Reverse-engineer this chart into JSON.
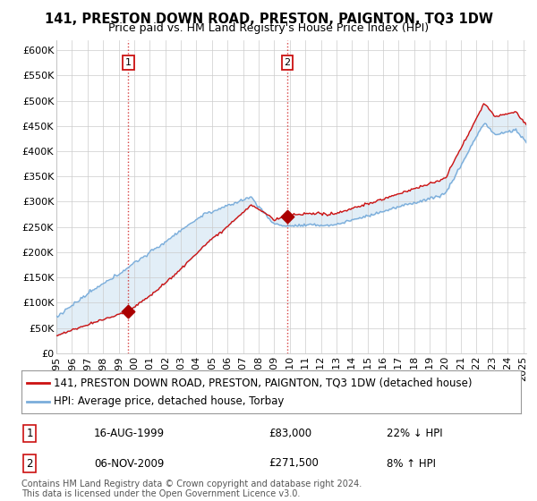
{
  "title": "141, PRESTON DOWN ROAD, PRESTON, PAIGNTON, TQ3 1DW",
  "subtitle": "Price paid vs. HM Land Registry's House Price Index (HPI)",
  "ylabel_ticks": [
    "£0",
    "£50K",
    "£100K",
    "£150K",
    "£200K",
    "£250K",
    "£300K",
    "£350K",
    "£400K",
    "£450K",
    "£500K",
    "£550K",
    "£600K"
  ],
  "ytick_values": [
    0,
    50000,
    100000,
    150000,
    200000,
    250000,
    300000,
    350000,
    400000,
    450000,
    500000,
    550000,
    600000
  ],
  "sale1": {
    "date_num": 1999.62,
    "price": 83000,
    "label": "1",
    "date_str": "16-AUG-1999",
    "pct": "22% ↓ HPI"
  },
  "sale2": {
    "date_num": 2009.85,
    "price": 271500,
    "label": "2",
    "date_str": "06-NOV-2009",
    "pct": "8% ↑ HPI"
  },
  "hpi_line_color": "#7aaddb",
  "price_line_color": "#cc1111",
  "fill_color": "#d6e8f5",
  "sale_dot_color": "#aa0000",
  "vline_color": "#cc1111",
  "background_color": "#ffffff",
  "grid_color": "#cccccc",
  "legend_label_price": "141, PRESTON DOWN ROAD, PRESTON, PAIGNTON, TQ3 1DW (detached house)",
  "legend_label_hpi": "HPI: Average price, detached house, Torbay",
  "footnote": "Contains HM Land Registry data © Crown copyright and database right 2024.\nThis data is licensed under the Open Government Licence v3.0.",
  "xmin": 1995.0,
  "xmax": 2025.2,
  "ymin": 0,
  "ymax": 620000,
  "title_fontsize": 10.5,
  "subtitle_fontsize": 9,
  "tick_fontsize": 8,
  "legend_fontsize": 8.5,
  "footnote_fontsize": 7
}
